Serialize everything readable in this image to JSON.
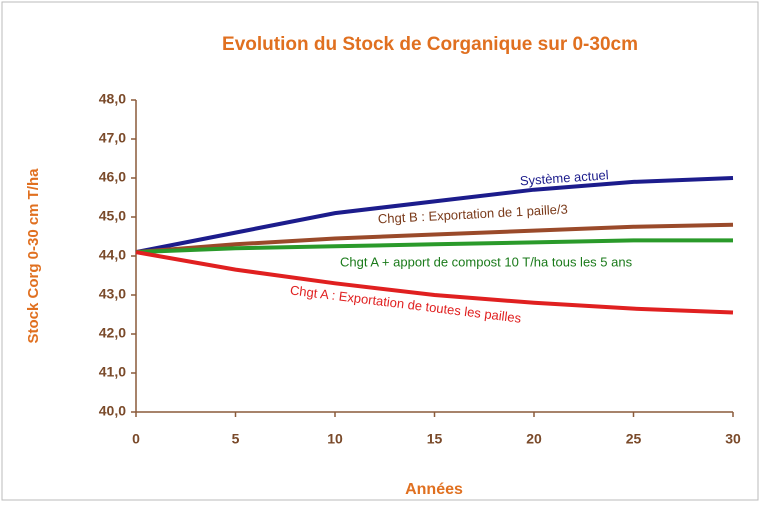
{
  "chart_data": {
    "type": "line",
    "title": "Evolution du Stock de Corganique sur 0-30cm",
    "x_label": "Années",
    "y_label": "Stock Corg 0-30 cm   T/ha",
    "x": [
      0,
      5,
      10,
      15,
      20,
      25,
      30
    ],
    "xlim": [
      0,
      30
    ],
    "xticks": [
      0,
      5,
      10,
      15,
      20,
      25,
      30
    ],
    "ylim": [
      40,
      48
    ],
    "yticks": [
      {
        "value": 40,
        "label": "40,0"
      },
      {
        "value": 41,
        "label": "41,0"
      },
      {
        "value": 42,
        "label": "42,0"
      },
      {
        "value": 43,
        "label": "43,0"
      },
      {
        "value": 44,
        "label": "44,0"
      },
      {
        "value": 45,
        "label": "45,0"
      },
      {
        "value": 46,
        "label": "46,0"
      },
      {
        "value": 47,
        "label": "47,0"
      },
      {
        "value": 48,
        "label": "48,0"
      }
    ],
    "series": [
      {
        "name": "Système actuel",
        "color": "#1c1c8c",
        "values": [
          44.1,
          44.6,
          45.1,
          45.4,
          45.7,
          45.9,
          46.0
        ]
      },
      {
        "name": "Chgt B : Exportation de 1 paille/3",
        "color": "#9a4a2a",
        "values": [
          44.1,
          44.3,
          44.45,
          44.55,
          44.65,
          44.75,
          44.8
        ]
      },
      {
        "name": "Chgt A  + apport de compost 10 T/ha tous les 5 ans",
        "color": "#2a9a2a",
        "values": [
          44.1,
          44.2,
          44.25,
          44.3,
          44.35,
          44.4,
          44.4
        ]
      },
      {
        "name": "Chgt A : Exportation de toutes les pailles",
        "color": "#e02020",
        "values": [
          44.1,
          43.65,
          43.3,
          43.0,
          42.8,
          42.65,
          42.55
        ]
      }
    ]
  }
}
